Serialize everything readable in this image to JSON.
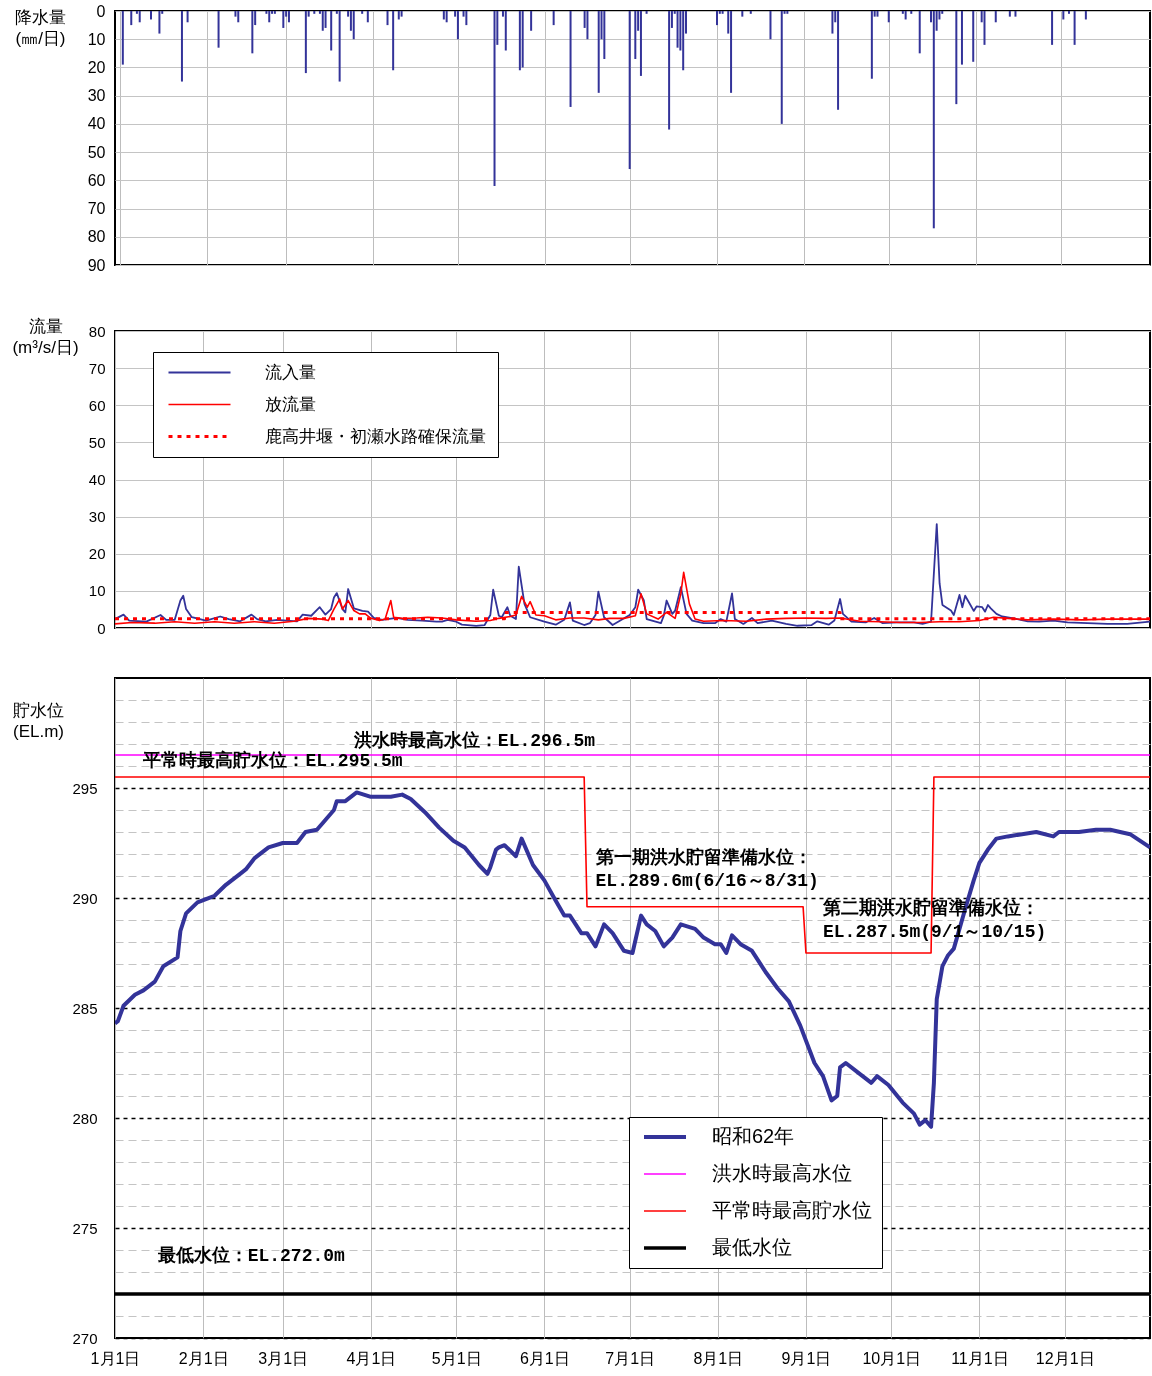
{
  "chart_data": [
    {
      "type": "bar",
      "ylabel": "降水量\n(㎜/日)",
      "color": "#333399",
      "x": [
        "--01-02",
        "--01-05",
        "--01-07",
        "--01-08",
        "--01-12",
        "--01-15",
        "--01-16",
        "--01-23",
        "--01-25",
        "--02-05",
        "--02-11",
        "--02-12",
        "--02-17",
        "--02-18",
        "--02-22",
        "--02-23",
        "--02-24",
        "--02-25",
        "--02-28",
        "--03-01",
        "--03-02",
        "--03-08",
        "--03-09",
        "--03-11",
        "--03-13",
        "--03-14",
        "--03-15",
        "--03-17",
        "--03-19",
        "--03-20",
        "--03-23",
        "--03-24",
        "--03-25",
        "--03-28",
        "--03-30",
        "--04-06",
        "--04-08",
        "--04-10",
        "--04-11",
        "--04-26",
        "--04-27",
        "--04-30",
        "--05-01",
        "--05-03",
        "--05-04",
        "--05-14",
        "--05-15",
        "--05-17",
        "--05-18",
        "--05-23",
        "--05-24",
        "--05-27",
        "--06-04",
        "--06-10",
        "--06-15",
        "--06-16",
        "--06-20",
        "--06-21",
        "--06-22",
        "--07-01",
        "--07-03",
        "--07-04",
        "--07-05",
        "--07-07",
        "--07-15",
        "--07-16",
        "--07-17",
        "--07-18",
        "--07-19",
        "--07-20",
        "--07-21",
        "--08-01",
        "--08-02",
        "--08-03",
        "--08-05",
        "--08-06",
        "--08-10",
        "--08-13",
        "--08-20",
        "--08-24",
        "--08-25",
        "--08-26",
        "--09-11",
        "--09-12",
        "--09-13",
        "--09-25",
        "--09-26",
        "--09-27",
        "--10-01",
        "--10-06",
        "--10-07",
        "--10-09",
        "--10-12",
        "--10-16",
        "--10-17",
        "--10-18",
        "--10-19",
        "--10-20",
        "--10-25",
        "--10-27",
        "--10-31",
        "--11-03",
        "--11-04",
        "--11-08",
        "--11-13",
        "--11-15",
        "--11-28",
        "--12-02",
        "--12-04",
        "--12-06",
        "--12-10"
      ],
      "values": [
        19,
        5,
        1,
        4,
        3,
        8,
        1,
        25,
        4,
        13,
        2,
        4,
        15,
        5,
        1,
        4,
        1,
        1,
        6,
        2,
        4,
        22,
        2,
        1,
        1,
        7,
        6,
        14,
        1,
        25,
        2,
        7,
        10,
        1,
        4,
        5,
        21,
        3,
        2,
        3,
        4,
        2,
        10,
        2,
        5,
        62,
        12,
        2,
        14,
        21,
        20,
        7,
        5,
        34,
        6,
        10,
        29,
        10,
        17,
        56,
        17,
        7,
        23,
        1,
        42,
        6,
        1,
        13,
        14,
        21,
        8,
        5,
        1,
        1,
        8,
        29,
        2,
        1,
        10,
        40,
        1,
        1,
        8,
        4,
        35,
        24,
        2,
        2,
        4,
        1,
        3,
        1,
        15,
        4,
        77,
        7,
        3,
        1,
        33,
        19,
        18,
        4,
        12,
        4,
        2,
        2,
        12,
        3,
        1,
        12,
        3
      ],
      "xlim": [
        "--01-01",
        "--12-31"
      ],
      "xticks": [
        {
          "value": "--01-01",
          "label": null
        },
        {
          "value": "--02-01",
          "label": null
        },
        {
          "value": "--03-01",
          "label": null
        },
        {
          "value": "--04-01",
          "label": null
        },
        {
          "value": "--05-01",
          "label": null
        },
        {
          "value": "--06-01",
          "label": null
        },
        {
          "value": "--07-01",
          "label": null
        },
        {
          "value": "--08-01",
          "label": null
        },
        {
          "value": "--09-01",
          "label": null
        },
        {
          "value": "--10-01",
          "label": null
        },
        {
          "value": "--11-01",
          "label": null
        },
        {
          "value": "--12-01",
          "label": null
        }
      ],
      "ylim": [
        90,
        0
      ],
      "yticks": [
        0,
        10,
        20,
        30,
        40,
        50,
        60,
        70,
        80,
        90
      ],
      "grid": true,
      "tick_labels": "y"
    },
    {
      "type": "line",
      "ylabel": "流量\n(m³/s/日)",
      "series": [
        {
          "name": "流入量",
          "color": "#333399",
          "x": [
            "--01-01",
            "--01-04",
            "--01-06",
            "--01-12",
            "--01-17",
            "--01-19",
            "--01-22",
            "--01-24",
            "--01-25",
            "--01-26",
            "--01-28",
            "--02-02",
            "--02-07",
            "--02-10",
            "--02-14",
            "--02-18",
            "--02-20",
            "--02-23",
            "--02-27",
            "--03-06",
            "--03-08",
            "--03-11",
            "--03-14",
            "--03-16",
            "--03-18",
            "--03-19",
            "--03-20",
            "--03-22",
            "--03-23",
            "--03-24",
            "--03-26",
            "--03-29",
            "--03-31",
            "--04-02",
            "--04-05",
            "--04-10",
            "--04-14",
            "--04-19",
            "--04-24",
            "--04-26",
            "--04-28",
            "--05-01",
            "--05-03",
            "--05-08",
            "--05-11",
            "--05-13",
            "--05-14",
            "--05-16",
            "--05-17",
            "--05-19",
            "--05-20",
            "--05-22",
            "--05-23",
            "--05-25",
            "--05-27",
            "--06-01",
            "--06-05",
            "--06-08",
            "--06-10",
            "--06-11",
            "--06-15",
            "--06-17",
            "--06-19",
            "--06-20",
            "--06-22",
            "--06-25",
            "--07-01",
            "--07-03",
            "--07-04",
            "--07-06",
            "--07-07",
            "--07-12",
            "--07-13",
            "--07-14",
            "--07-16",
            "--07-17",
            "--07-19",
            "--07-21",
            "--07-23",
            "--07-27",
            "--07-31",
            "--08-02",
            "--08-04",
            "--08-06",
            "--08-07",
            "--08-10",
            "--08-13",
            "--08-15",
            "--08-20",
            "--08-25",
            "--08-29",
            "--09-03",
            "--09-05",
            "--09-09",
            "--09-11",
            "--09-13",
            "--09-14",
            "--09-17",
            "--09-22",
            "--09-25",
            "--09-28",
            "--10-03",
            "--10-09",
            "--10-12",
            "--10-15",
            "--10-17",
            "--10-18",
            "--10-19",
            "--10-22",
            "--10-23",
            "--10-25",
            "--10-26",
            "--10-27",
            "--10-29",
            "--10-30",
            "--10-31",
            "--11-02",
            "--11-03",
            "--11-04",
            "--11-05",
            "--11-07",
            "--11-09",
            "--11-13",
            "--11-18",
            "--11-22",
            "--11-27",
            "--12-02",
            "--12-09",
            "--12-16",
            "--12-23",
            "--12-31"
          ],
          "values": [
            2.4,
            3.6,
            2.0,
            1.7,
            3.5,
            2.2,
            2.2,
            7.4,
            8.7,
            5.1,
            2.9,
            2.0,
            3.1,
            2.4,
            1.8,
            3.6,
            2.4,
            1.8,
            2.2,
            1.8,
            3.6,
            3.3,
            5.6,
            3.6,
            5.1,
            8.2,
            9.4,
            5.1,
            4.2,
            10.5,
            5.3,
            4.6,
            4.4,
            2.7,
            2.2,
            2.7,
            2.2,
            2.0,
            1.7,
            1.7,
            2.2,
            1.7,
            0.9,
            0.6,
            0.8,
            3.5,
            10.3,
            3.3,
            2.9,
            5.6,
            3.3,
            2.4,
            16.5,
            6.5,
            2.9,
            1.7,
            0.9,
            2.2,
            6.9,
            2.0,
            0.8,
            1.3,
            3.5,
            9.8,
            2.9,
            0.8,
            3.5,
            5.6,
            10.3,
            7.4,
            2.4,
            1.3,
            3.3,
            7.4,
            3.8,
            4.7,
            11.0,
            3.8,
            2.0,
            1.3,
            1.3,
            2.4,
            1.7,
            9.3,
            2.4,
            1.1,
            2.7,
            1.3,
            2.0,
            1.1,
            0.6,
            0.8,
            1.8,
            0.9,
            2.0,
            7.8,
            3.8,
            1.7,
            1.5,
            2.7,
            1.3,
            1.5,
            1.5,
            1.1,
            1.7,
            28,
            12,
            6.2,
            4.7,
            3.5,
            8.9,
            5.6,
            8.7,
            6.0,
            4.6,
            5.8,
            5.6,
            4.4,
            6.2,
            5.3,
            3.8,
            3.1,
            2.6,
            1.8,
            1.7,
            2.0,
            1.5,
            1.3,
            1.1,
            1.1,
            1.7
          ]
        },
        {
          "name": "放流量",
          "color": "#ff0000",
          "x": [
            "--01-01",
            "--01-07",
            "--01-15",
            "--01-22",
            "--01-29",
            "--02-05",
            "--02-12",
            "--02-19",
            "--02-26",
            "--03-05",
            "--03-10",
            "--03-15",
            "--03-17",
            "--03-19",
            "--03-21",
            "--03-22",
            "--03-24",
            "--03-26",
            "--03-28",
            "--03-30",
            "--04-01",
            "--04-04",
            "--04-06",
            "--04-08",
            "--04-09",
            "--04-12",
            "--04-17",
            "--04-21",
            "--04-26",
            "--05-01",
            "--05-08",
            "--05-13",
            "--05-16",
            "--05-20",
            "--05-22",
            "--05-24",
            "--05-26",
            "--05-27",
            "--05-29",
            "--06-01",
            "--06-05",
            "--06-10",
            "--06-15",
            "--06-20",
            "--06-24",
            "--06-29",
            "--07-03",
            "--07-05",
            "--07-07",
            "--07-11",
            "--07-14",
            "--07-17",
            "--07-19",
            "--07-20",
            "--07-22",
            "--07-24",
            "--07-27",
            "--08-03",
            "--08-11",
            "--08-18",
            "--08-25",
            "--09-01",
            "--09-08",
            "--09-13",
            "--09-20",
            "--09-27",
            "--10-04",
            "--10-11",
            "--10-18",
            "--10-25",
            "--11-01",
            "--11-06",
            "--11-11",
            "--11-18",
            "--11-27",
            "--12-07",
            "--12-16",
            "--12-26",
            "--12-31"
          ],
          "values": [
            1.1,
            1.5,
            1.3,
            1.7,
            1.3,
            1.7,
            1.3,
            1.7,
            1.3,
            1.8,
            2.6,
            2.4,
            2.0,
            5.1,
            7.8,
            5.1,
            7.4,
            4.7,
            3.8,
            3.8,
            2.6,
            2.0,
            2.4,
            7.4,
            2.9,
            2.6,
            2.7,
            2.9,
            2.7,
            2.2,
            1.8,
            2.0,
            2.6,
            3.1,
            3.5,
            8.5,
            5.6,
            7.1,
            3.5,
            3.3,
            2.2,
            2.7,
            2.7,
            2.2,
            2.6,
            2.6,
            3.3,
            9.2,
            3.8,
            2.4,
            4.2,
            2.6,
            9.3,
            15.0,
            6.5,
            2.4,
            1.8,
            2.0,
            1.8,
            2.4,
            2.6,
            2.7,
            2.6,
            2.7,
            1.8,
            1.7,
            1.5,
            1.5,
            1.7,
            1.7,
            2.0,
            2.9,
            2.6,
            2.2,
            2.4,
            2.2,
            2.4,
            2.4,
            2.4
          ]
        },
        {
          "name": "鹿高井堰・初瀬水路確保流量",
          "color": "#ff0000",
          "type": "step",
          "line_style": "dotted",
          "x": [
            "--01-01",
            "--05-18",
            "--09-13",
            "--12-31"
          ],
          "values": [
            2.5,
            4.2,
            2.5,
            2.5
          ]
        }
      ],
      "xlim": [
        "--01-01",
        "--12-31"
      ],
      "xticks": [
        {
          "value": "--01-01",
          "label": null
        },
        {
          "value": "--02-01",
          "label": null
        },
        {
          "value": "--03-01",
          "label": null
        },
        {
          "value": "--04-01",
          "label": null
        },
        {
          "value": "--05-01",
          "label": null
        },
        {
          "value": "--06-01",
          "label": null
        },
        {
          "value": "--07-01",
          "label": null
        },
        {
          "value": "--08-01",
          "label": null
        },
        {
          "value": "--09-01",
          "label": null
        },
        {
          "value": "--10-01",
          "label": null
        },
        {
          "value": "--11-01",
          "label": null
        },
        {
          "value": "--12-01",
          "label": null
        }
      ],
      "ylim": [
        0,
        80
      ],
      "yticks": [
        0,
        10,
        20,
        30,
        40,
        50,
        60,
        70,
        80
      ],
      "grid": true,
      "legend": "top left",
      "tick_labels": "y"
    },
    {
      "type": "line",
      "ylabel": "貯水位\n(EL.m)",
      "series": [
        {
          "name": "昭和62年",
          "color": "#333399",
          "x": [
            "--01-01",
            "--01-02",
            "--01-04",
            "--01-08",
            "--01-11",
            "--01-15",
            "--01-18",
            "--01-23",
            "--01-24",
            "--01-26",
            "--01-30",
            "--02-05",
            "--02-09",
            "--02-14",
            "--02-16",
            "--02-19",
            "--02-24",
            "--03-01",
            "--03-06",
            "--03-09",
            "--03-13",
            "--03-15",
            "--03-19",
            "--03-20",
            "--03-23",
            "--03-27",
            "--04-01",
            "--04-05",
            "--04-08",
            "--04-12",
            "--04-15",
            "--04-20",
            "--04-25",
            "--04-30",
            "--05-04",
            "--05-09",
            "--05-12",
            "--05-13",
            "--05-15",
            "--05-16",
            "--05-18",
            "--05-22",
            "--05-24",
            "--05-28",
            "--06-01",
            "--06-04",
            "--06-08",
            "--06-10",
            "--06-14",
            "--06-16",
            "--06-19",
            "--06-22",
            "--06-25",
            "--06-29",
            "--07-02",
            "--07-05",
            "--07-07",
            "--07-10",
            "--07-13",
            "--07-16",
            "--07-19",
            "--07-24",
            "--07-27",
            "--07-31",
            "--08-02",
            "--08-04",
            "--08-06",
            "--08-09",
            "--08-13",
            "--08-18",
            "--08-22",
            "--08-26",
            "--08-30",
            "--09-04",
            "--09-07",
            "--09-10",
            "--09-12",
            "--09-13",
            "--09-15",
            "--09-19",
            "--09-24",
            "--09-26",
            "--09-30",
            "--10-05",
            "--10-09",
            "--10-11",
            "--10-13",
            "--10-15",
            "--10-16",
            "--10-17",
            "--10-19",
            "--10-21",
            "--10-23",
            "--10-27",
            "--10-30",
            "--11-01",
            "--11-04",
            "--11-07",
            "--11-11",
            "--11-16",
            "--11-21",
            "--11-27",
            "--11-29",
            "--12-06",
            "--12-12",
            "--12-17",
            "--12-24",
            "--12-31"
          ],
          "values": [
            284.3,
            284.4,
            285.1,
            285.6,
            285.8,
            286.2,
            286.9,
            287.3,
            288.5,
            289.3,
            289.8,
            290.1,
            290.6,
            291.1,
            291.3,
            291.8,
            292.3,
            292.5,
            292.5,
            293.0,
            293.1,
            293.4,
            294.0,
            294.4,
            294.4,
            294.8,
            294.6,
            294.6,
            294.6,
            294.7,
            294.5,
            293.9,
            293.2,
            292.6,
            292.3,
            291.5,
            291.1,
            291.4,
            292.2,
            292.3,
            292.4,
            291.9,
            292.7,
            291.5,
            290.8,
            290.1,
            289.2,
            289.2,
            288.4,
            288.4,
            287.8,
            288.8,
            288.4,
            287.6,
            287.5,
            289.2,
            288.8,
            288.5,
            287.8,
            288.2,
            288.8,
            288.6,
            288.2,
            287.9,
            287.9,
            287.5,
            288.3,
            287.9,
            287.6,
            286.6,
            285.9,
            285.3,
            284.2,
            282.5,
            281.9,
            280.8,
            281.0,
            282.3,
            282.5,
            282.1,
            281.6,
            281.9,
            281.5,
            280.7,
            280.2,
            279.7,
            279.9,
            279.6,
            281.6,
            285.4,
            286.9,
            287.4,
            287.7,
            289.5,
            290.8,
            291.6,
            292.2,
            292.7,
            292.8,
            292.9,
            293.0,
            292.8,
            293.0,
            293.0,
            293.1,
            293.1,
            292.9,
            292.3
          ]
        },
        {
          "name": "洪水時最高水位",
          "color": "#ff00ff",
          "x": [
            "--01-01",
            "--12-31"
          ],
          "values": [
            296.5,
            296.5
          ]
        },
        {
          "name": "平常時最高貯水位",
          "color": "#ff0000",
          "x": [
            "--01-01",
            "--06-15",
            "--06-16",
            "--08-31",
            "--09-01",
            "--10-15",
            "--10-16",
            "--12-31"
          ],
          "values": [
            295.5,
            295.5,
            289.6,
            289.6,
            287.5,
            287.5,
            295.5,
            295.5
          ]
        },
        {
          "name": "最低水位",
          "color": "#000000",
          "x": [
            "--01-01",
            "--12-31"
          ],
          "values": [
            272.0,
            272.0
          ]
        }
      ],
      "annotations": [
        {
          "text": "洪水時最高水位：EL.296.5m",
          "x": "--03-26",
          "y": 296.5
        },
        {
          "text": "平常時最高貯水位：EL.295.5m",
          "x": "--01-11",
          "y": 295.5
        },
        {
          "text": "第一期洪水貯留準備水位：\nEL.289.6m(6/16～8/31)",
          "x": "--06-19",
          "y": 289.6
        },
        {
          "text": "第二期洪水貯留準備水位：\nEL.287.5m(9/1～10/15)",
          "x": "--09-07",
          "y": 287.5
        },
        {
          "text": "最低水位：EL.272.0m",
          "x": "--01-16",
          "y": 272.0
        }
      ],
      "xlim": [
        "--01-01",
        "--12-31"
      ],
      "xticks": [
        {
          "value": "--01-01",
          "label": "1月1日"
        },
        {
          "value": "--02-01",
          "label": "2月1日"
        },
        {
          "value": "--03-01",
          "label": "3月1日"
        },
        {
          "value": "--04-01",
          "label": "4月1日"
        },
        {
          "value": "--05-01",
          "label": "5月1日"
        },
        {
          "value": "--06-01",
          "label": "6月1日"
        },
        {
          "value": "--07-01",
          "label": "7月1日"
        },
        {
          "value": "--08-01",
          "label": "8月1日"
        },
        {
          "value": "--09-01",
          "label": "9月1日"
        },
        {
          "value": "--10-01",
          "label": "10月1日"
        },
        {
          "value": "--11-01",
          "label": "11月1日"
        },
        {
          "value": "--12-01",
          "label": "12月1日"
        }
      ],
      "ylim": [
        270,
        300
      ],
      "yticks": [
        270,
        {
          "value": 271,
          "label": null
        },
        {
          "value": 272,
          "label": null
        },
        {
          "value": 273,
          "label": null
        },
        {
          "value": 274,
          "label": null
        },
        275,
        {
          "value": 276,
          "label": null
        },
        {
          "value": 277,
          "label": null
        },
        {
          "value": 278,
          "label": null
        },
        {
          "value": 279,
          "label": null
        },
        280,
        {
          "value": 281,
          "label": null
        },
        {
          "value": 282,
          "label": null
        },
        {
          "value": 283,
          "label": null
        },
        {
          "value": 284,
          "label": null
        },
        285,
        {
          "value": 286,
          "label": null
        },
        {
          "value": 287,
          "label": null
        },
        {
          "value": 288,
          "label": null
        },
        {
          "value": 289,
          "label": null
        },
        290,
        {
          "value": 291,
          "label": null
        },
        {
          "value": 292,
          "label": null
        },
        {
          "value": 293,
          "label": null
        },
        {
          "value": 294,
          "label": null
        },
        295,
        {
          "value": 296,
          "label": null
        },
        {
          "value": 297,
          "label": null
        },
        {
          "value": 298,
          "label": null
        },
        {
          "value": 299,
          "label": null
        }
      ],
      "grid": true,
      "legend": "bottom"
    }
  ]
}
